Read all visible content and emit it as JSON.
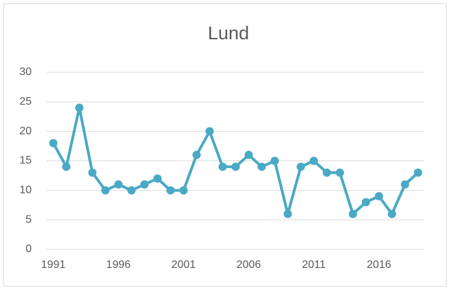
{
  "chart_data": {
    "type": "line",
    "title": "Lund",
    "x": [
      1991,
      1992,
      1993,
      1994,
      1995,
      1996,
      1997,
      1998,
      1999,
      2000,
      2001,
      2002,
      2003,
      2004,
      2005,
      2006,
      2007,
      2008,
      2009,
      2010,
      2011,
      2012,
      2013,
      2014,
      2015,
      2016,
      2017,
      2018,
      2019
    ],
    "series": [
      {
        "name": "Lund",
        "color": "#4aa9c4",
        "values": [
          18,
          14,
          24,
          13,
          10,
          11,
          10,
          11,
          12,
          10,
          10,
          16,
          20,
          14,
          14,
          16,
          14,
          15,
          6,
          14,
          15,
          13,
          13,
          6,
          8,
          9,
          6,
          11,
          13
        ]
      }
    ],
    "xlim": [
      1990.5,
      2019.5
    ],
    "xticks": [
      1991,
      1996,
      2001,
      2006,
      2011,
      2016
    ],
    "ylim": [
      0,
      30
    ],
    "yticks": [
      0,
      5,
      10,
      15,
      20,
      25,
      30
    ],
    "grid": true
  }
}
